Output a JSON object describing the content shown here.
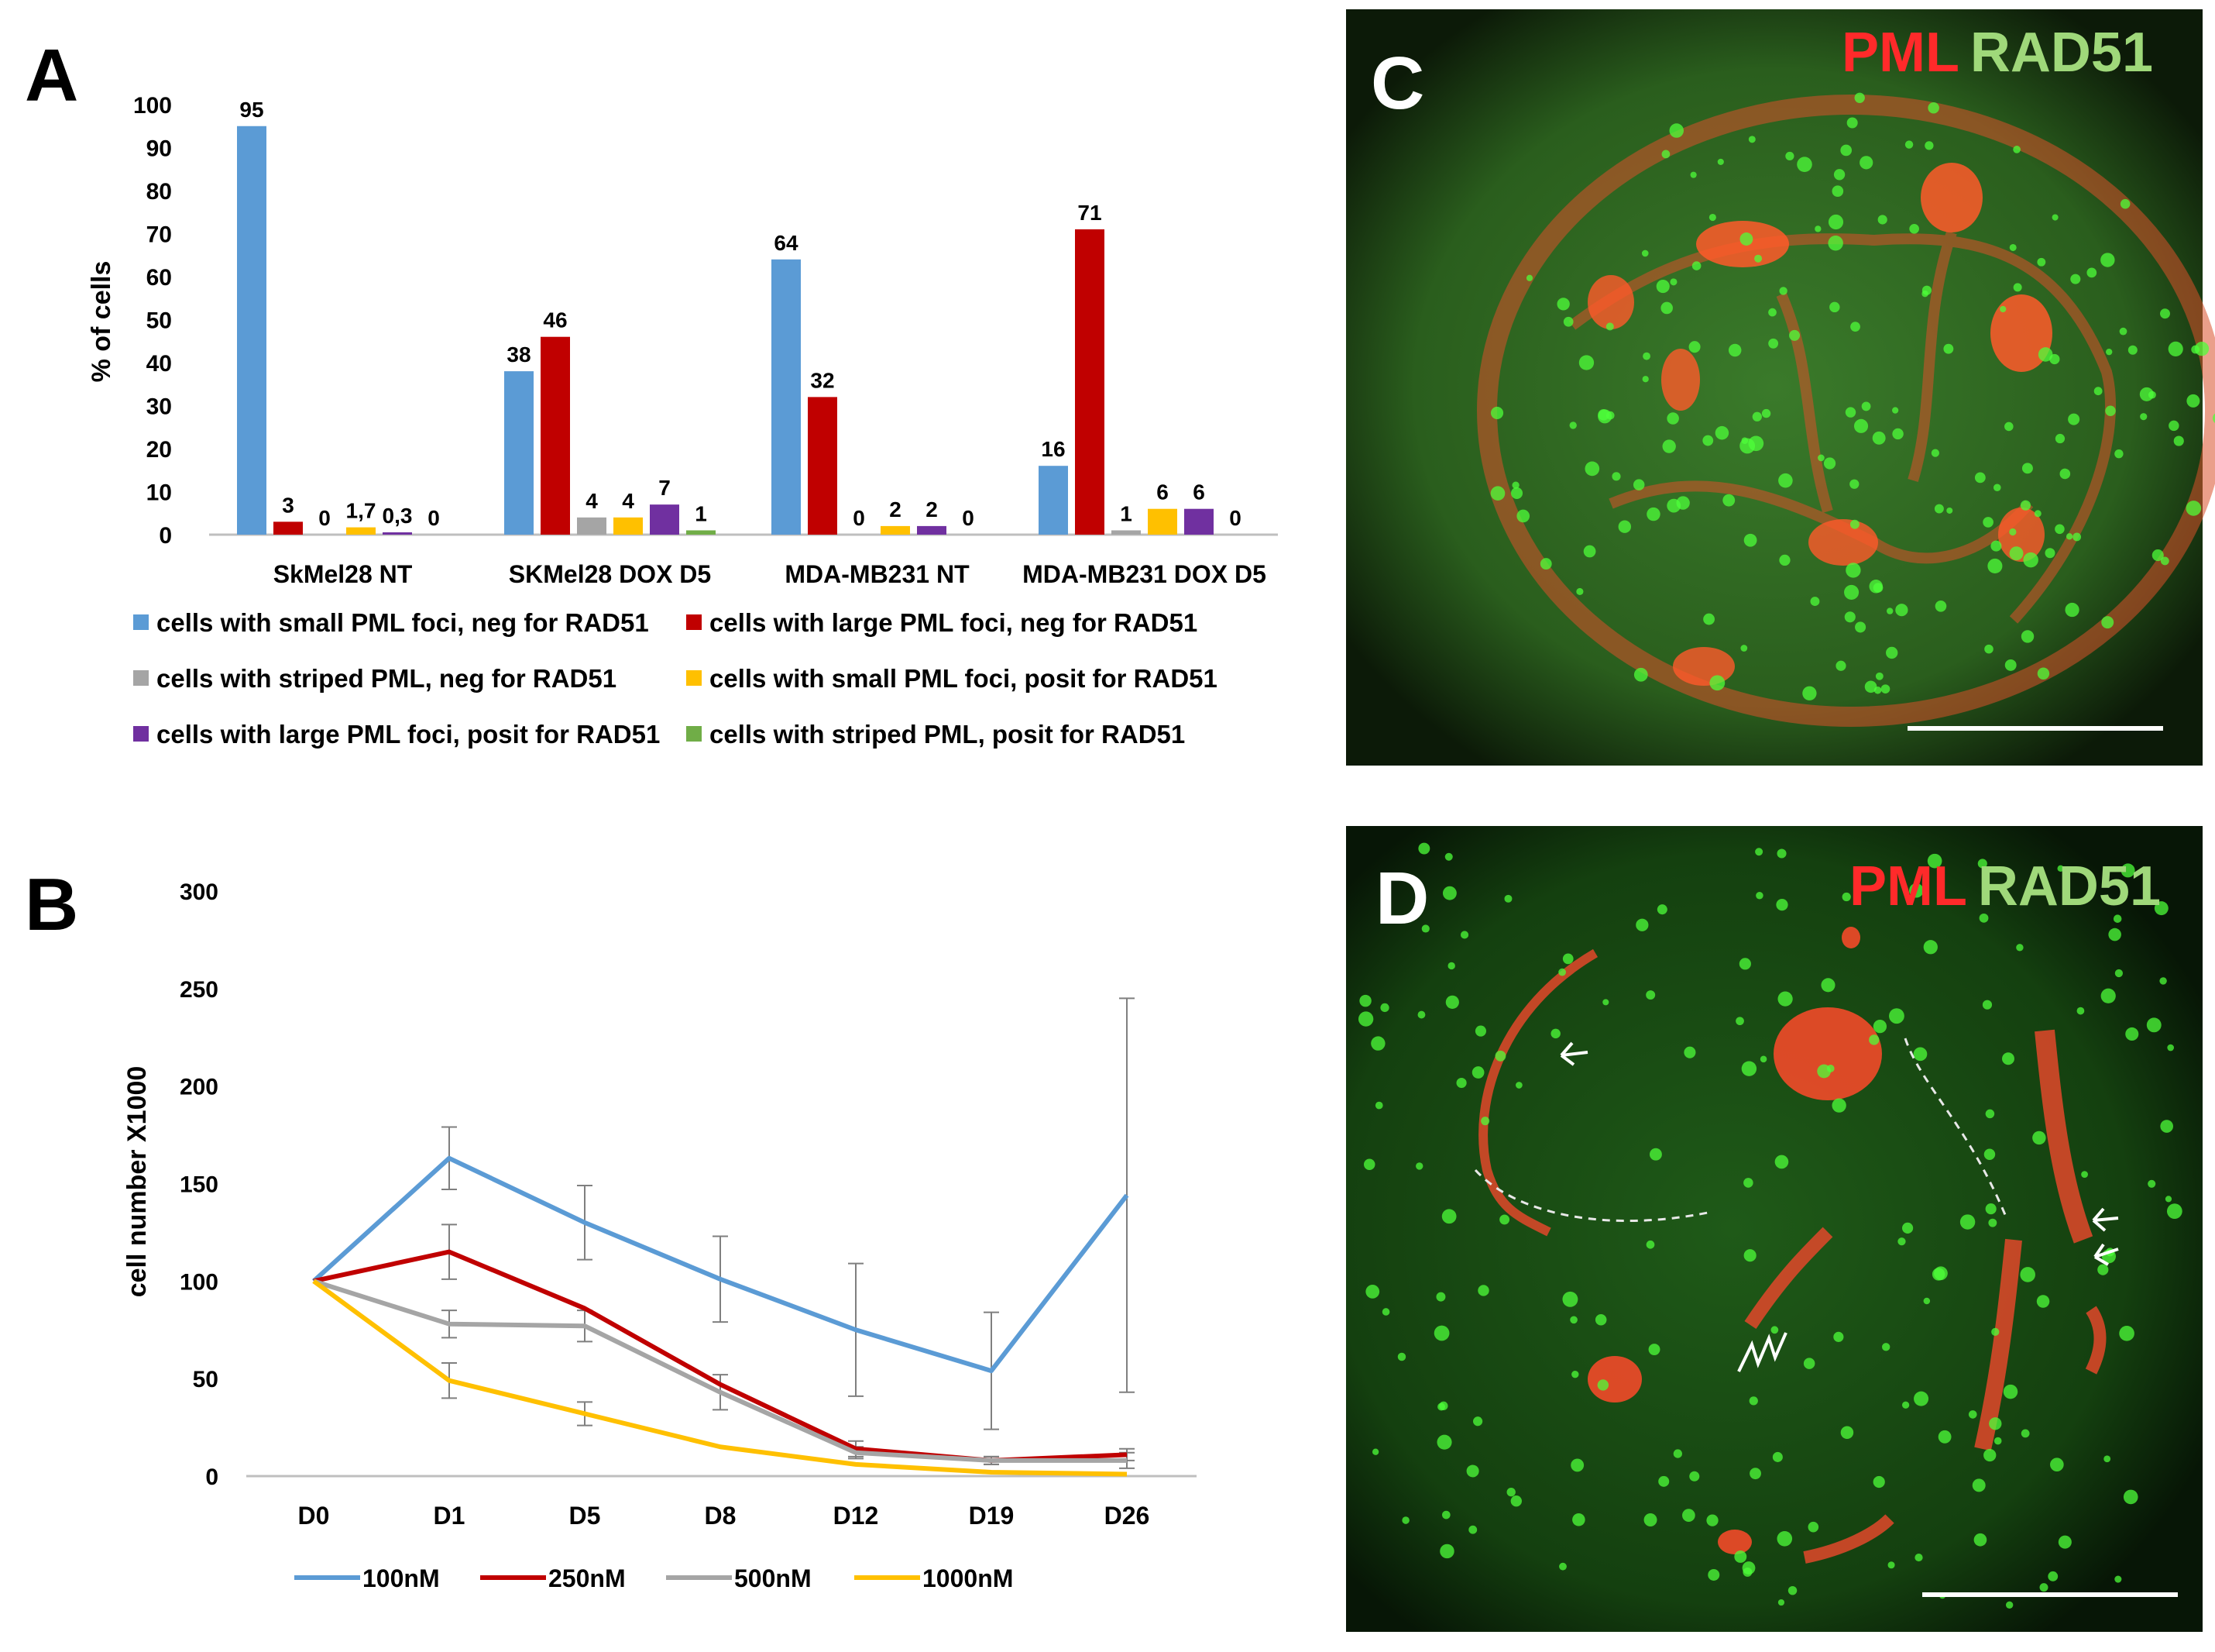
{
  "panels": {
    "A": {
      "letter": "A"
    },
    "B": {
      "letter": "B"
    },
    "C": {
      "letter": "C",
      "label_pml": "PML",
      "label_rad51": "RAD51"
    },
    "D": {
      "letter": "D",
      "label_pml": "PML",
      "label_rad51": "RAD51"
    }
  },
  "colors": {
    "blue": "#5b9bd5",
    "red": "#c00000",
    "gray": "#a5a5a5",
    "yellow": "#ffc000",
    "purple": "#7030a0",
    "green": "#70ad47",
    "pml_red": "#ff2a2a",
    "rad51_green": "#9fd87a"
  },
  "chart_data": [
    {
      "type": "bar",
      "ylabel": "% of cells",
      "ylim": [
        0,
        100
      ],
      "yticks": [
        0,
        10,
        20,
        30,
        40,
        50,
        60,
        70,
        80,
        90,
        100
      ],
      "grid": false,
      "legend_position": "bottom",
      "categories": [
        "SkMel28 NT",
        "SKMel28 DOX D5",
        "MDA-MB231 NT",
        "MDA-MB231 DOX D5"
      ],
      "series": [
        {
          "name": "cells with small PML foci, neg for RAD51",
          "color": "#5b9bd5",
          "values": [
            95,
            38,
            64,
            16
          ],
          "labels": [
            "95",
            "38",
            "64",
            "16"
          ]
        },
        {
          "name": "cells with large PML foci, neg for RAD51",
          "color": "#c00000",
          "values": [
            3,
            46,
            32,
            71
          ],
          "labels": [
            "3",
            "46",
            "32",
            "71"
          ]
        },
        {
          "name": "cells with striped PML, neg for RAD51",
          "color": "#a5a5a5",
          "values": [
            0,
            4,
            0,
            1
          ],
          "labels": [
            "0",
            "4",
            "0",
            "1"
          ]
        },
        {
          "name": "cells with small PML foci, posit for RAD51",
          "color": "#ffc000",
          "values": [
            1.7,
            4,
            2,
            6
          ],
          "labels": [
            "1,7",
            "4",
            "2",
            "6"
          ]
        },
        {
          "name": "cells with large PML foci, posit for RAD51",
          "color": "#7030a0",
          "values": [
            0.3,
            7,
            2,
            6
          ],
          "labels": [
            "0,3",
            "7",
            "2",
            "6"
          ]
        },
        {
          "name": "cells with striped PML, posit for RAD51",
          "color": "#70ad47",
          "values": [
            0,
            1,
            0,
            0
          ],
          "labels": [
            "0",
            "1",
            "0",
            "0"
          ]
        }
      ]
    },
    {
      "type": "line",
      "ylabel": "cell number X1000",
      "ylim": [
        0,
        300
      ],
      "yticks": [
        0,
        50,
        100,
        150,
        200,
        250,
        300
      ],
      "grid": false,
      "legend_position": "bottom",
      "categories": [
        "D0",
        "D1",
        "D5",
        "D8",
        "D12",
        "D19",
        "D26"
      ],
      "series": [
        {
          "name": "100nM",
          "color": "#5b9bd5",
          "values": [
            100,
            163,
            130,
            101,
            75,
            54,
            144
          ],
          "errors": [
            0,
            16,
            19,
            22,
            34,
            30,
            101
          ]
        },
        {
          "name": "250nM",
          "color": "#c00000",
          "values": [
            100,
            115,
            86,
            47,
            14,
            8,
            11
          ],
          "errors": [
            0,
            14,
            0,
            0,
            4,
            2,
            3
          ]
        },
        {
          "name": "500nM",
          "color": "#a5a5a5",
          "values": [
            100,
            78,
            77,
            43,
            12,
            8,
            8
          ],
          "errors": [
            0,
            7,
            8,
            9,
            3,
            2,
            4
          ]
        },
        {
          "name": "1000nM",
          "color": "#ffc000",
          "values": [
            100,
            49,
            32,
            15,
            6,
            2,
            1
          ],
          "errors": [
            0,
            9,
            6,
            0,
            0,
            0,
            0
          ]
        }
      ]
    }
  ]
}
